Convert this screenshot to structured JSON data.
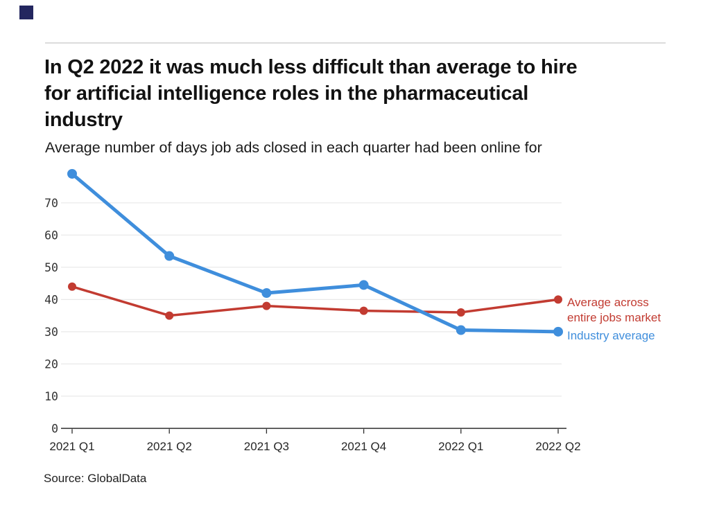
{
  "page": {
    "title_lines": [
      "In Q2 2022 it was much less difficult than average to hire",
      "for artificial intelligence roles in the pharmaceutical",
      "industry"
    ],
    "subtitle": "Average number of days job ads closed in each quarter had been online for",
    "source": "Source: GlobalData",
    "brand_color": "#23265f",
    "background": "#ffffff"
  },
  "chart_data": {
    "type": "line",
    "title": "In Q2 2022 it was much less difficult than average to hire for artificial intelligence roles in the pharmaceutical industry",
    "subtitle": "Average number of days job ads closed in each quarter had been online for",
    "categories": [
      "2021 Q1",
      "2021 Q2",
      "2021 Q3",
      "2021 Q4",
      "2022 Q1",
      "2022 Q2"
    ],
    "series": [
      {
        "name": "Average across entire jobs market",
        "color": "#c23b31",
        "line_width": 3.5,
        "marker_radius": 6,
        "values": [
          44,
          35,
          38,
          36.5,
          36,
          40
        ]
      },
      {
        "name": "Industry average",
        "color": "#3f8edc",
        "line_width": 5,
        "marker_radius": 7,
        "values": [
          79,
          53.5,
          42,
          44.5,
          30.5,
          30
        ]
      }
    ],
    "yticks": [
      0,
      10,
      20,
      30,
      40,
      50,
      60,
      70
    ],
    "ylim": [
      0,
      81
    ],
    "xlabel": "",
    "ylabel": "",
    "grid": "horizontal",
    "grid_color": "#e8e8e8",
    "axis_color": "#2b2b2b",
    "legend_position": "right-of-last-point",
    "source": "Source: GlobalData"
  },
  "legend": {
    "market": {
      "label": "Average across entire jobs market",
      "label_lines": [
        "Average across",
        "entire jobs market"
      ],
      "color": "#c23b31"
    },
    "industry": {
      "label": "Industry average",
      "color": "#3f8edc"
    }
  }
}
